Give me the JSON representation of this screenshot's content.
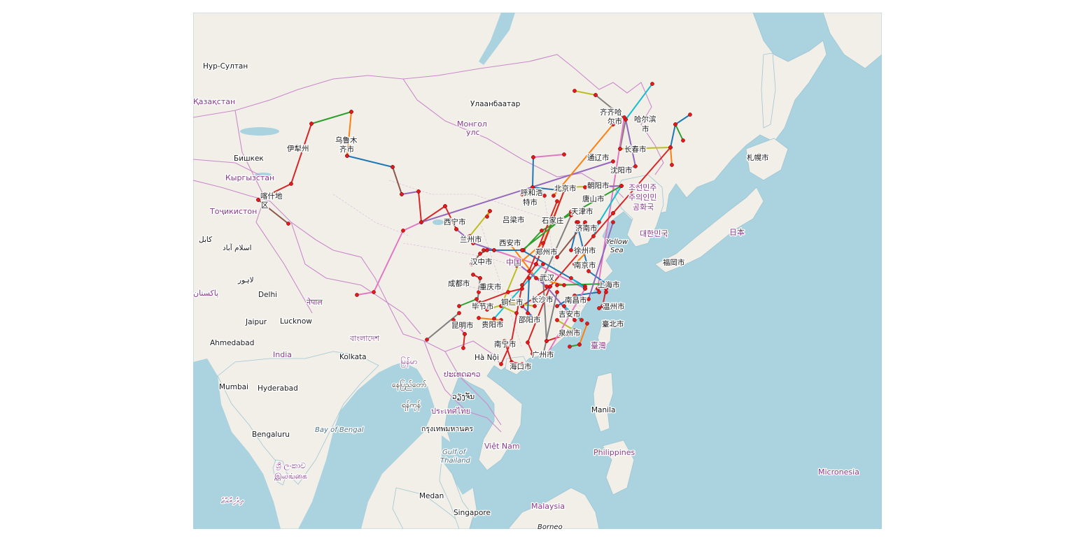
{
  "map": {
    "type": "route-map",
    "base_layer": "OpenStreetMap",
    "colors": {
      "land": "#f2efe9",
      "water": "#aad3df",
      "border": "#c98ac9",
      "node": "#e31a1c"
    },
    "place_labels": [
      {
        "id": "nur-sultan",
        "text": "Нур-Султан",
        "kind": "city"
      },
      {
        "id": "kazakhstan",
        "text": "Қазақстан",
        "kind": "country"
      },
      {
        "id": "ulaanbaatar",
        "text": "Улаанбаатар",
        "kind": "city"
      },
      {
        "id": "mongol-1",
        "text": "Монгол",
        "kind": "country"
      },
      {
        "id": "mongol-2",
        "text": "улс",
        "kind": "country"
      },
      {
        "id": "qiqihar-1",
        "text": "齐齐哈",
        "kind": "city"
      },
      {
        "id": "qiqihar-2",
        "text": "尔市",
        "kind": "city"
      },
      {
        "id": "harbin-1",
        "text": "哈尔滨",
        "kind": "city"
      },
      {
        "id": "harbin-2",
        "text": "市",
        "kind": "city"
      },
      {
        "id": "urumqi-1",
        "text": "乌鲁木",
        "kind": "city"
      },
      {
        "id": "urumqi-2",
        "text": "齐市",
        "kind": "city"
      },
      {
        "id": "yili",
        "text": "伊犁州",
        "kind": "city"
      },
      {
        "id": "bishkek",
        "text": "Бишкек",
        "kind": "city"
      },
      {
        "id": "kyrgyzstan",
        "text": "Кыргызстан",
        "kind": "country"
      },
      {
        "id": "kashgar-1",
        "text": "喀什地",
        "kind": "city"
      },
      {
        "id": "kashgar-2",
        "text": "区",
        "kind": "city"
      },
      {
        "id": "tajikistan",
        "text": "Тоҷикистон",
        "kind": "country"
      },
      {
        "id": "kabul",
        "text": "کابل",
        "kind": "city"
      },
      {
        "id": "islamabad",
        "text": "اسلام آباد",
        "kind": "city"
      },
      {
        "id": "lahore",
        "text": "لاہور",
        "kind": "city"
      },
      {
        "id": "pakistan",
        "text": "پاکستان",
        "kind": "country"
      },
      {
        "id": "delhi",
        "text": "Delhi",
        "kind": "city"
      },
      {
        "id": "nepal",
        "text": "नेपाल",
        "kind": "country"
      },
      {
        "id": "jaipur",
        "text": "Jaipur",
        "kind": "city"
      },
      {
        "id": "lucknow",
        "text": "Lucknow",
        "kind": "city"
      },
      {
        "id": "ahmedabad",
        "text": "Ahmedabad",
        "kind": "city"
      },
      {
        "id": "india",
        "text": "India",
        "kind": "country"
      },
      {
        "id": "bangladesh",
        "text": "বাংলাদেশ",
        "kind": "country"
      },
      {
        "id": "kolkata",
        "text": "Kolkata",
        "kind": "city"
      },
      {
        "id": "mumbai",
        "text": "Mumbai",
        "kind": "city"
      },
      {
        "id": "hyderabad",
        "text": "Hyderabad",
        "kind": "city"
      },
      {
        "id": "bengaluru",
        "text": "Bengaluru",
        "kind": "city"
      },
      {
        "id": "bay-of-bengal",
        "text": "Bay of Bengal",
        "kind": "sea"
      },
      {
        "id": "srilanka-1",
        "text": "ශ්‍රී ලංකාව",
        "kind": "country"
      },
      {
        "id": "srilanka-2",
        "text": "இலங்கை",
        "kind": "country"
      },
      {
        "id": "maldives",
        "text": "ދިވެހިރާއްޖެ",
        "kind": "country"
      },
      {
        "id": "myanmar",
        "text": "မြန်မာ",
        "kind": "country"
      },
      {
        "id": "naypyidaw",
        "text": "နေပြည်တော်",
        "kind": "city"
      },
      {
        "id": "yangon",
        "text": "ရန်ကုန်",
        "kind": "city"
      },
      {
        "id": "laos",
        "text": "ປະເທດລາວ",
        "kind": "country"
      },
      {
        "id": "vientiane",
        "text": "ວຽງຈັນ",
        "kind": "city"
      },
      {
        "id": "thailand",
        "text": "ประเทศไทย",
        "kind": "country"
      },
      {
        "id": "bangkok",
        "text": "กรุงเทพมหานคร",
        "kind": "city"
      },
      {
        "id": "gulf-thailand-1",
        "text": "Gulf of",
        "kind": "sea"
      },
      {
        "id": "gulf-thailand-2",
        "text": "Thailand",
        "kind": "sea"
      },
      {
        "id": "vietnam",
        "text": "Việt Nam",
        "kind": "country"
      },
      {
        "id": "hanoi",
        "text": "Hà Nội",
        "kind": "city"
      },
      {
        "id": "medan",
        "text": "Medan",
        "kind": "city"
      },
      {
        "id": "singapore",
        "text": "Singapore",
        "kind": "city"
      },
      {
        "id": "malaysia",
        "text": "Malaysia",
        "kind": "country"
      },
      {
        "id": "borneo",
        "text": "Borneo",
        "kind": "ocean"
      },
      {
        "id": "manila",
        "text": "Manila",
        "kind": "city"
      },
      {
        "id": "philippines",
        "text": "Philippines",
        "kind": "country"
      },
      {
        "id": "micronesia",
        "text": "Micronesia",
        "kind": "country"
      },
      {
        "id": "japan",
        "text": "日本",
        "kind": "country"
      },
      {
        "id": "sapporo",
        "text": "札幌市",
        "kind": "city"
      },
      {
        "id": "fukuoka",
        "text": "福岡市",
        "kind": "city"
      },
      {
        "id": "korea-s",
        "text": "대한민국",
        "kind": "country"
      },
      {
        "id": "korea-n-1",
        "text": "조선민주",
        "kind": "country"
      },
      {
        "id": "korea-n-2",
        "text": "주의인민",
        "kind": "country"
      },
      {
        "id": "korea-n-3",
        "text": "공화국",
        "kind": "country"
      },
      {
        "id": "yellow-sea-1",
        "text": "Yellow",
        "kind": "ocean"
      },
      {
        "id": "yellow-sea-2",
        "text": "Sea",
        "kind": "ocean"
      },
      {
        "id": "taiwan",
        "text": "臺灣",
        "kind": "country"
      },
      {
        "id": "taipei",
        "text": "臺北市",
        "kind": "city"
      },
      {
        "id": "tongliao",
        "text": "通辽市",
        "kind": "city"
      },
      {
        "id": "changchun",
        "text": "长春市",
        "kind": "city"
      },
      {
        "id": "shenyang",
        "text": "沈阳市",
        "kind": "city"
      },
      {
        "id": "hohhot-1",
        "text": "呼和浩",
        "kind": "city"
      },
      {
        "id": "hohhot-2",
        "text": "特市",
        "kind": "city"
      },
      {
        "id": "beijing",
        "text": "北京市",
        "kind": "city"
      },
      {
        "id": "chaoyang",
        "text": "朝阳市",
        "kind": "city"
      },
      {
        "id": "tangshan",
        "text": "唐山市",
        "kind": "city"
      },
      {
        "id": "tianjin",
        "text": "天津市",
        "kind": "city"
      },
      {
        "id": "shijiazhuang",
        "text": "石家庄",
        "kind": "city"
      },
      {
        "id": "jinan",
        "text": "济南市",
        "kind": "city"
      },
      {
        "id": "luliang",
        "text": "吕梁市",
        "kind": "city"
      },
      {
        "id": "xining",
        "text": "西宁市",
        "kind": "city"
      },
      {
        "id": "lanzhou",
        "text": "兰州市",
        "kind": "city"
      },
      {
        "id": "xian",
        "text": "西安市",
        "kind": "city"
      },
      {
        "id": "zhengzhou",
        "text": "郑州市",
        "kind": "city"
      },
      {
        "id": "xuzhou",
        "text": "徐州市",
        "kind": "city"
      },
      {
        "id": "hanzhong",
        "text": "汉中市",
        "kind": "city"
      },
      {
        "id": "china",
        "text": "中国",
        "kind": "country"
      },
      {
        "id": "nanjing",
        "text": "南京市",
        "kind": "city"
      },
      {
        "id": "chengdu",
        "text": "成都市",
        "kind": "city"
      },
      {
        "id": "chongqing",
        "text": "重庆市",
        "kind": "city"
      },
      {
        "id": "wuhan",
        "text": "武汉",
        "kind": "city"
      },
      {
        "id": "shanghai",
        "text": "上海市",
        "kind": "city"
      },
      {
        "id": "tongren",
        "text": "铜仁市",
        "kind": "city"
      },
      {
        "id": "changsha",
        "text": "长沙市",
        "kind": "city"
      },
      {
        "id": "nanchang",
        "text": "南昌市",
        "kind": "city"
      },
      {
        "id": "bijie",
        "text": "毕节市",
        "kind": "city"
      },
      {
        "id": "wenzhou",
        "text": "温州市",
        "kind": "city"
      },
      {
        "id": "kunming",
        "text": "昆明市",
        "kind": "city"
      },
      {
        "id": "guiyang",
        "text": "贵阳市",
        "kind": "city"
      },
      {
        "id": "shaoyang",
        "text": "邵阳市",
        "kind": "city"
      },
      {
        "id": "jian",
        "text": "吉安市",
        "kind": "city"
      },
      {
        "id": "quanzhou",
        "text": "泉州市",
        "kind": "city"
      },
      {
        "id": "nanning",
        "text": "南宁市",
        "kind": "city"
      },
      {
        "id": "guangzhou",
        "text": "广州市",
        "kind": "city"
      },
      {
        "id": "haikou",
        "text": "海口市",
        "kind": "city"
      }
    ]
  }
}
